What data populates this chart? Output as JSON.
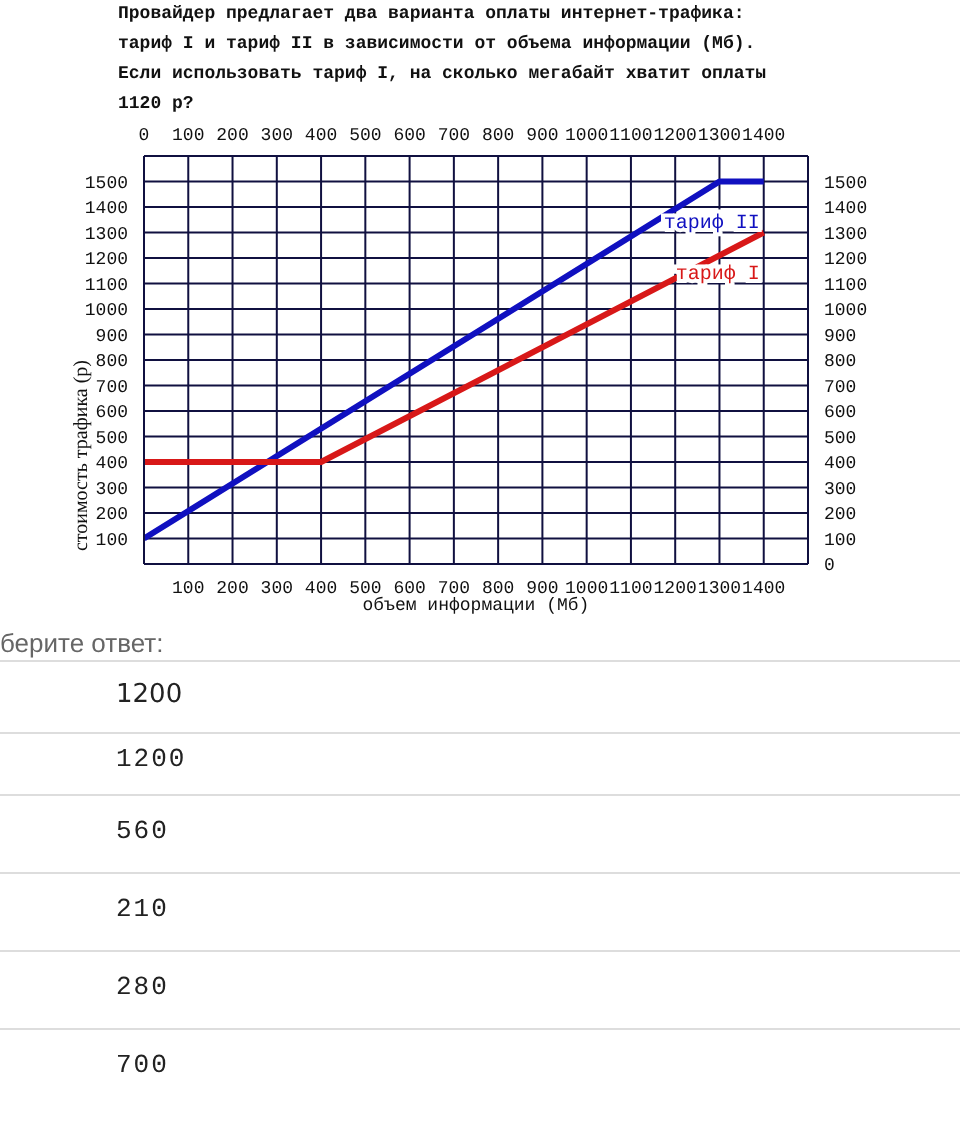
{
  "chart_data": {
    "type": "line",
    "title": "Провайдер предлагает два варианта оплаты интернет-трафика: тариф I и тариф II в зависимости от объема информации (Мб). Если использовать тариф I, на сколько мегабайт хватит оплаты 1120 р?",
    "xlabel": "объем информации (Мб)",
    "ylabel": "стоимость трафика (р)",
    "xlim": [
      0,
      1500
    ],
    "xticks": [
      {
        "value": 0,
        "label": null
      },
      100,
      200,
      300,
      400,
      500,
      600,
      700,
      800,
      900,
      1000,
      1100,
      1200,
      1300,
      1400
    ],
    "x2lim": [
      0,
      1500
    ],
    "x2ticks": [
      0,
      100,
      200,
      300,
      400,
      500,
      600,
      700,
      800,
      900,
      1000,
      1100,
      1200,
      1300,
      1400
    ],
    "ylim": [
      0,
      1600
    ],
    "yticks": [
      {
        "value": 0,
        "label": null
      },
      100,
      200,
      300,
      400,
      500,
      600,
      700,
      800,
      900,
      1000,
      1100,
      1200,
      1300,
      1400,
      1500
    ],
    "y2lim": [
      0,
      1600
    ],
    "y2ticks": [
      0,
      100,
      200,
      300,
      400,
      500,
      600,
      700,
      800,
      900,
      1000,
      1100,
      1200,
      1300,
      1400,
      1500
    ],
    "grid": true,
    "marker": "none",
    "line_style": "solid",
    "series": [
      {
        "name": "тариф II",
        "color": "#1010c0",
        "x": [
          0,
          1300,
          1400
        ],
        "values": [
          100,
          1500,
          1500
        ]
      },
      {
        "name": "тариф I",
        "color": "#d81818",
        "x": [
          0,
          400,
          1400
        ],
        "values": [
          400,
          400,
          1300
        ]
      }
    ],
    "annotations": [
      "берите ответ:",
      "1200",
      "1200",
      "560",
      "210",
      "280",
      "700"
    ]
  }
}
